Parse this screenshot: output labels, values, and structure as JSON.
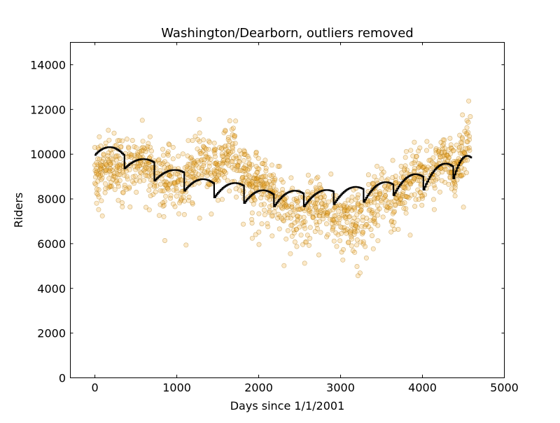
{
  "chart_data": {
    "type": "scatter",
    "title": "Washington/Dearborn, outliers removed",
    "xlabel": "Days since 1/1/2001",
    "ylabel": "Riders",
    "xlim": [
      -300,
      5000
    ],
    "ylim": [
      0,
      15000
    ],
    "x_ticks": [
      0,
      1000,
      2000,
      3000,
      4000,
      5000
    ],
    "x_tick_labels": [
      "0",
      "1000",
      "2000",
      "3000",
      "4000",
      "5000"
    ],
    "y_ticks": [
      0,
      2000,
      4000,
      6000,
      8000,
      10000,
      12000,
      14000
    ],
    "y_tick_labels": [
      "0",
      "2000",
      "4000",
      "6000",
      "8000",
      "10000",
      "12000",
      "14000"
    ],
    "grid": false,
    "series": [
      {
        "kind": "scatter",
        "color": "#f5a623",
        "edge_color": "#a06a00",
        "opacity": 0.25,
        "trend": [
          [
            0,
            9100
          ],
          [
            200,
            9500
          ],
          [
            365,
            9300
          ],
          [
            600,
            9700
          ],
          [
            730,
            9000
          ],
          [
            900,
            9200
          ],
          [
            1095,
            8600
          ],
          [
            1300,
            9900
          ],
          [
            1460,
            9300
          ],
          [
            1700,
            10100
          ],
          [
            1825,
            9000
          ],
          [
            2000,
            8800
          ],
          [
            2190,
            8000
          ],
          [
            2400,
            7600
          ],
          [
            2560,
            7000
          ],
          [
            2750,
            7900
          ],
          [
            2920,
            7300
          ],
          [
            3100,
            7000
          ],
          [
            3285,
            7300
          ],
          [
            3500,
            8300
          ],
          [
            3650,
            8000
          ],
          [
            3800,
            8700
          ],
          [
            4000,
            9000
          ],
          [
            4150,
            9500
          ],
          [
            4300,
            9900
          ],
          [
            4400,
            9100
          ],
          [
            4500,
            9900
          ],
          [
            4590,
            11300
          ]
        ],
        "spread": 650,
        "count": 1500
      },
      {
        "kind": "step",
        "color": "#000000",
        "segments": [
          {
            "x0": 0,
            "x1": 365,
            "y0": 9950,
            "peak": 10300,
            "y1": 9900
          },
          {
            "x0": 365,
            "x1": 730,
            "y0": 9350,
            "peak": 9750,
            "y1": 9600
          },
          {
            "x0": 730,
            "x1": 1095,
            "y0": 8800,
            "peak": 9250,
            "y1": 9150
          },
          {
            "x0": 1095,
            "x1": 1460,
            "y0": 8350,
            "peak": 8850,
            "y1": 8650
          },
          {
            "x0": 1460,
            "x1": 1825,
            "y0": 8050,
            "peak": 8650,
            "y1": 8550
          },
          {
            "x0": 1825,
            "x1": 2190,
            "y0": 7800,
            "peak": 8350,
            "y1": 8150
          },
          {
            "x0": 2190,
            "x1": 2555,
            "y0": 7650,
            "peak": 8300,
            "y1": 8200
          },
          {
            "x0": 2555,
            "x1": 2920,
            "y0": 7650,
            "peak": 8300,
            "y1": 8300
          },
          {
            "x0": 2920,
            "x1": 3285,
            "y0": 7750,
            "peak": 8450,
            "y1": 8400
          },
          {
            "x0": 3285,
            "x1": 3650,
            "y0": 7850,
            "peak": 8650,
            "y1": 8600
          },
          {
            "x0": 3650,
            "x1": 4015,
            "y0": 8150,
            "peak": 9000,
            "y1": 8950
          },
          {
            "x0": 4015,
            "x1": 4380,
            "y0": 8400,
            "peak": 9450,
            "y1": 9400
          },
          {
            "x0": 4380,
            "x1": 4600,
            "y0": 8900,
            "peak": 9800,
            "y1": 9800
          }
        ]
      }
    ]
  }
}
